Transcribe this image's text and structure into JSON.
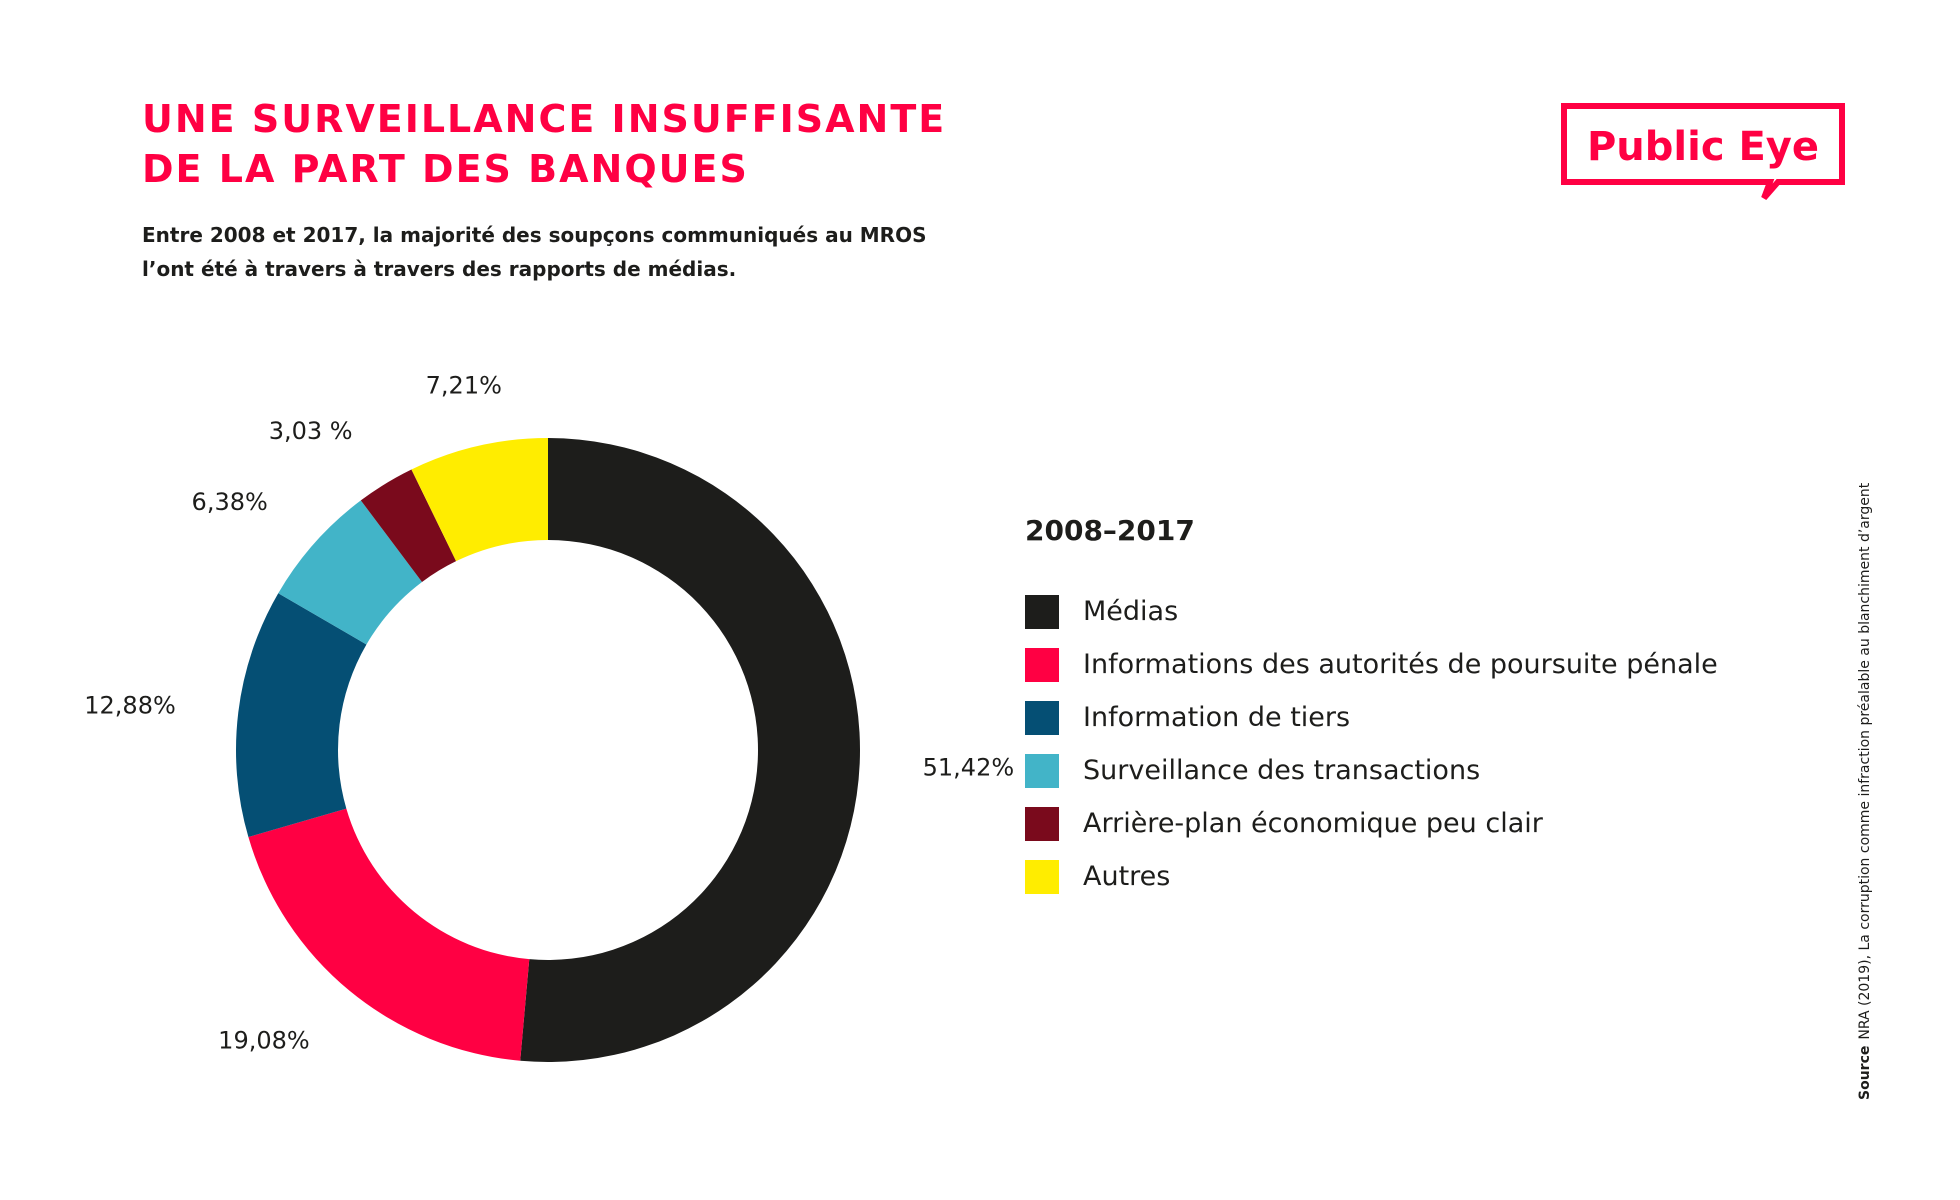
{
  "header": {
    "title_line1": "UNE SURVEILLANCE INSUFFISANTE",
    "title_line2": "DE LA PART DES BANQUES",
    "subtitle_line1": "Entre 2008 et 2017, la majorité des soupçons communiqués au MROS",
    "subtitle_line2": "l’ont été à travers à travers des rapports de médias."
  },
  "logo": {
    "text": "Public Eye",
    "color": "#ff0043"
  },
  "legend": {
    "title": "2008–2017"
  },
  "source": {
    "label": "Source",
    "text": "NRA (2019), La corruption comme infraction préalable au blanchiment d’argent"
  },
  "chart_data": {
    "type": "donut",
    "title": "2008–2017",
    "unit": "%",
    "categories": [
      "Médias",
      "Informations des autorités de poursuite pénale",
      "Information de tiers",
      "Surveillance des transactions",
      "Arrière-plan économique peu clair",
      "Autres"
    ],
    "values": [
      51.42,
      19.08,
      12.88,
      6.38,
      3.03,
      7.21
    ],
    "value_labels": [
      "51,42%",
      "19,08%",
      "12,88%",
      "6,38%",
      "3,03 %",
      "7,21%"
    ],
    "colors": [
      "#1d1d1b",
      "#ff0043",
      "#054f74",
      "#42b4c8",
      "#7a0a1c",
      "#ffed00"
    ],
    "legend_position": "right"
  }
}
